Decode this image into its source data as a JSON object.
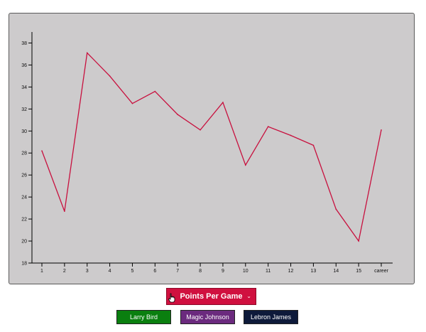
{
  "chart_data": {
    "type": "line",
    "categories": [
      "1",
      "2",
      "3",
      "4",
      "5",
      "6",
      "7",
      "8",
      "9",
      "10",
      "11",
      "12",
      "13",
      "14",
      "15",
      "career"
    ],
    "series": [
      {
        "values": [
          28.2,
          22.7,
          37.1,
          35.0,
          32.5,
          33.6,
          31.5,
          30.1,
          32.6,
          26.9,
          30.4,
          29.6,
          28.7,
          22.9,
          20.0,
          30.1
        ]
      }
    ],
    "ylim": [
      18,
      39
    ],
    "yticks": [
      18,
      20,
      22,
      24,
      26,
      28,
      30,
      32,
      34,
      36,
      38
    ],
    "line_color": "#c8103e",
    "grid": false
  },
  "controls": {
    "stat_select": {
      "selected": "Points Per Game",
      "chevron": "⌄"
    },
    "players": [
      {
        "label": "Larry Bird",
        "color": "#0a7f0f"
      },
      {
        "label": "Magic Johnson",
        "color": "#6b2a7e"
      },
      {
        "label": "Lebron James",
        "color": "#0e1a3a"
      }
    ]
  },
  "icons": {
    "cursor": "hand-pointer-icon",
    "dropdown": "chevron-down-icon"
  }
}
